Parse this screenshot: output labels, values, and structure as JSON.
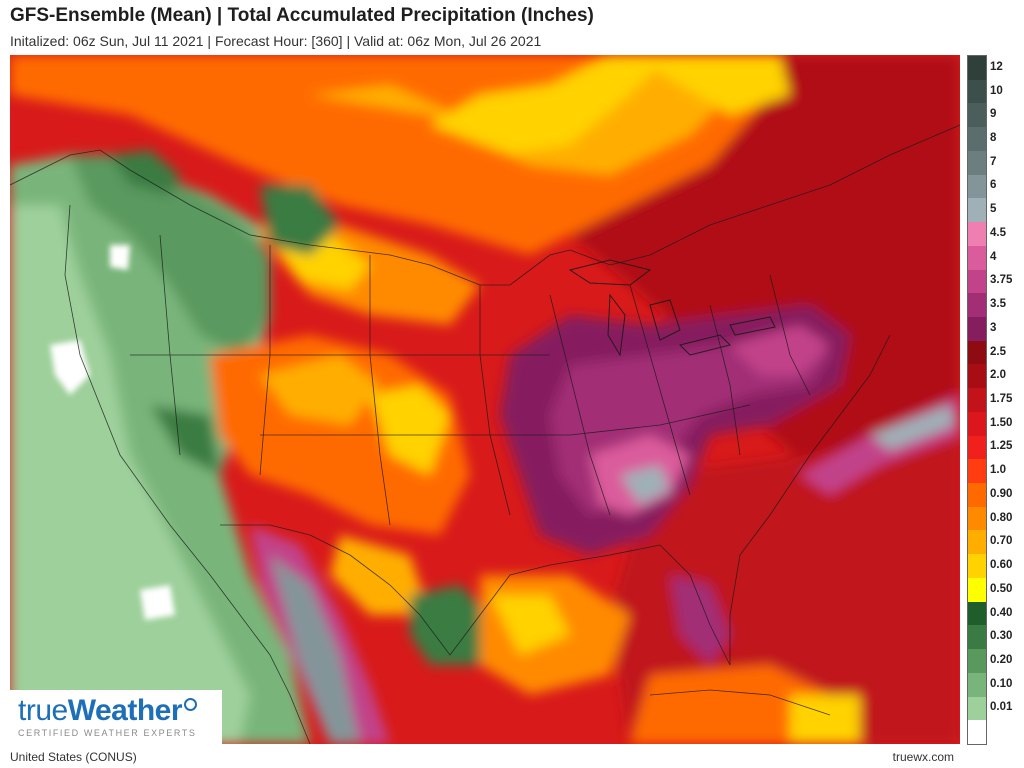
{
  "header": {
    "title": "GFS-Ensemble (Mean) | Total Accumulated Precipitation (Inches)",
    "subtitle": "Initalized: 06z Sun, Jul 11 2021 | Forecast Hour: [360] | Valid at: 06z Mon, Jul 26 2021"
  },
  "legend": {
    "levels": [
      {
        "label": "12",
        "color": "#2f3f3a"
      },
      {
        "label": "10",
        "color": "#3d4f4b"
      },
      {
        "label": "9",
        "color": "#4b5e5b"
      },
      {
        "label": "8",
        "color": "#5b6d6c"
      },
      {
        "label": "7",
        "color": "#6d7e80"
      },
      {
        "label": "6",
        "color": "#84959a"
      },
      {
        "label": "5",
        "color": "#9fb0b7"
      },
      {
        "label": "4.5",
        "color": "#f07fb1"
      },
      {
        "label": "4",
        "color": "#db5c9c"
      },
      {
        "label": "3.75",
        "color": "#c2438a"
      },
      {
        "label": "3.5",
        "color": "#a22e76"
      },
      {
        "label": "3",
        "color": "#861d5f"
      },
      {
        "label": "2.5",
        "color": "#8e0b12"
      },
      {
        "label": "2.0",
        "color": "#a80d14"
      },
      {
        "label": "1.75",
        "color": "#c2121a"
      },
      {
        "label": "1.50",
        "color": "#db171d"
      },
      {
        "label": "1.25",
        "color": "#f0211d"
      },
      {
        "label": "1.0",
        "color": "#ff3d10"
      },
      {
        "label": "0.90",
        "color": "#ff6a00"
      },
      {
        "label": "0.80",
        "color": "#ff8a00"
      },
      {
        "label": "0.70",
        "color": "#ffae00"
      },
      {
        "label": "0.60",
        "color": "#ffd200"
      },
      {
        "label": "0.50",
        "color": "#ffff00"
      },
      {
        "label": "0.40",
        "color": "#1f5e2b"
      },
      {
        "label": "0.30",
        "color": "#3a7b43"
      },
      {
        "label": "0.20",
        "color": "#5a995e"
      },
      {
        "label": "0.10",
        "color": "#79b57a"
      },
      {
        "label": "0.01",
        "color": "#9ed09b"
      },
      {
        "label": "",
        "color": "#ffffff"
      }
    ]
  },
  "logo": {
    "brand_plain": "true",
    "brand_bold": "Weather",
    "tagline": "CERTIFIED WEATHER EXPERTS"
  },
  "footer": {
    "region": "United States (CONUS)",
    "site": "truewx.com"
  }
}
